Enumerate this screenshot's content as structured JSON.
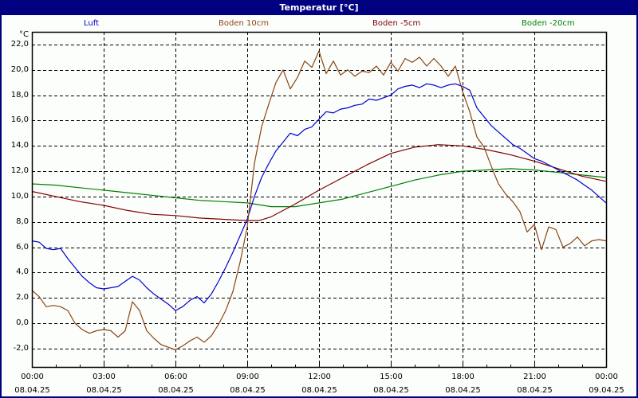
{
  "window": {
    "title": "Temperatur [°C]"
  },
  "colors": {
    "title_bg": "#000080",
    "plot_bg": "#fcfefc",
    "grid": "#000000"
  },
  "chart_data": {
    "type": "line",
    "title": "Temperatur [°C]",
    "ylabel": "°C",
    "xlabel": "",
    "ylim": [
      -3.4,
      23.0
    ],
    "yticks": [
      22,
      20,
      18,
      16,
      14,
      12,
      10,
      8,
      6,
      4,
      2,
      0,
      -2
    ],
    "ytick_labels": [
      "22,0",
      "20,0",
      "18,0",
      "16,0",
      "14,0",
      "12,0",
      "10,0",
      "8,0",
      "6,0",
      "4,0",
      "2,0",
      "0,0",
      "-2,0"
    ],
    "xlim_hours": [
      0,
      24
    ],
    "xticks_hours": [
      0,
      3,
      6,
      9,
      12,
      15,
      18,
      21,
      24
    ],
    "xtick_labels": [
      {
        "time": "00:00",
        "date": "08.04.25"
      },
      {
        "time": "03:00",
        "date": "08.04.25"
      },
      {
        "time": "06:00",
        "date": "08.04.25"
      },
      {
        "time": "09:00",
        "date": "08.04.25"
      },
      {
        "time": "12:00",
        "date": "08.04.25"
      },
      {
        "time": "15:00",
        "date": "08.04.25"
      },
      {
        "time": "18:00",
        "date": "08.04.25"
      },
      {
        "time": "21:00",
        "date": "08.04.25"
      },
      {
        "time": "00:00",
        "date": "09.04.25"
      }
    ],
    "grid": true,
    "legend_position": "top",
    "series": [
      {
        "name": "Luft",
        "color": "#0000cc",
        "x": [
          0,
          0.3,
          0.6,
          0.9,
          1.2,
          1.5,
          1.8,
          2.1,
          2.4,
          2.7,
          3.0,
          3.3,
          3.6,
          3.9,
          4.2,
          4.5,
          4.8,
          5.1,
          5.4,
          5.7,
          6.0,
          6.3,
          6.6,
          6.9,
          7.2,
          7.5,
          7.8,
          8.1,
          8.4,
          8.7,
          9.0,
          9.3,
          9.6,
          9.9,
          10.2,
          10.5,
          10.8,
          11.1,
          11.4,
          11.7,
          12.0,
          12.3,
          12.6,
          12.9,
          13.2,
          13.5,
          13.8,
          14.1,
          14.4,
          14.7,
          15.0,
          15.3,
          15.6,
          15.9,
          16.2,
          16.5,
          16.8,
          17.1,
          17.4,
          17.7,
          18.0,
          18.3,
          18.6,
          18.9,
          19.2,
          19.5,
          19.8,
          20.1,
          20.4,
          20.7,
          21.0,
          21.3,
          21.6,
          21.9,
          22.2,
          22.5,
          22.8,
          23.1,
          23.4,
          23.7,
          24.0
        ],
        "values": [
          6.5,
          6.4,
          5.9,
          5.8,
          5.9,
          5.1,
          4.4,
          3.7,
          3.2,
          2.8,
          2.7,
          2.8,
          2.9,
          3.3,
          3.7,
          3.4,
          2.8,
          2.3,
          1.9,
          1.5,
          1.0,
          1.3,
          1.8,
          2.1,
          1.6,
          2.3,
          3.3,
          4.4,
          5.6,
          6.9,
          8.2,
          10.0,
          11.5,
          12.6,
          13.6,
          14.3,
          15.0,
          14.8,
          15.3,
          15.5,
          16.1,
          16.7,
          16.6,
          16.9,
          17.0,
          17.2,
          17.3,
          17.7,
          17.6,
          17.8,
          18.0,
          18.5,
          18.7,
          18.8,
          18.6,
          18.9,
          18.8,
          18.6,
          18.8,
          18.9,
          18.7,
          18.4,
          17.0,
          16.3,
          15.6,
          15.1,
          14.6,
          14.1,
          13.8,
          13.4,
          13.0,
          12.8,
          12.5,
          12.2,
          11.9,
          11.6,
          11.3,
          10.9,
          10.5,
          10.0,
          9.5
        ]
      },
      {
        "name": "Boden 10cm",
        "color": "#8b4513",
        "x": [
          0,
          0.3,
          0.6,
          0.9,
          1.2,
          1.5,
          1.8,
          2.1,
          2.4,
          2.7,
          3.0,
          3.3,
          3.6,
          3.9,
          4.2,
          4.5,
          4.8,
          5.1,
          5.4,
          5.7,
          6.0,
          6.3,
          6.6,
          6.9,
          7.2,
          7.5,
          7.8,
          8.1,
          8.4,
          8.7,
          9.0,
          9.3,
          9.6,
          9.9,
          10.2,
          10.5,
          10.8,
          11.1,
          11.4,
          11.7,
          12.0,
          12.3,
          12.6,
          12.9,
          13.2,
          13.5,
          13.8,
          14.1,
          14.4,
          14.7,
          15.0,
          15.3,
          15.6,
          15.9,
          16.2,
          16.5,
          16.8,
          17.1,
          17.4,
          17.7,
          18.0,
          18.3,
          18.6,
          18.9,
          19.2,
          19.5,
          19.8,
          20.1,
          20.4,
          20.7,
          21.0,
          21.3,
          21.6,
          21.9,
          22.2,
          22.5,
          22.8,
          23.1,
          23.4,
          23.7,
          24.0
        ],
        "values": [
          2.6,
          2.1,
          1.3,
          1.4,
          1.3,
          1.0,
          0.0,
          -0.5,
          -0.8,
          -0.6,
          -0.5,
          -0.6,
          -1.1,
          -0.6,
          1.7,
          1.0,
          -0.6,
          -1.2,
          -1.7,
          -1.9,
          -2.1,
          -1.8,
          -1.4,
          -1.1,
          -1.5,
          -1.0,
          -0.1,
          1.0,
          2.5,
          4.8,
          7.6,
          12.6,
          15.5,
          17.3,
          19.0,
          20.0,
          18.5,
          19.4,
          20.7,
          20.2,
          21.5,
          19.7,
          20.7,
          19.6,
          20.0,
          19.5,
          19.9,
          19.8,
          20.3,
          19.6,
          20.6,
          19.9,
          20.9,
          20.6,
          21.0,
          20.3,
          20.9,
          20.3,
          19.5,
          20.3,
          18.3,
          16.7,
          14.7,
          13.9,
          12.4,
          11.0,
          10.2,
          9.6,
          8.8,
          7.2,
          7.8,
          5.8,
          7.6,
          7.4,
          6.0,
          6.3,
          6.8,
          6.1,
          6.5,
          6.6,
          6.5
        ]
      },
      {
        "name": "Boden -5cm",
        "color": "#800000",
        "x": [
          0,
          1,
          2,
          3,
          4,
          5,
          6,
          7,
          8,
          9,
          9.5,
          10,
          11,
          12,
          13,
          14,
          15,
          16,
          17,
          18,
          19,
          20,
          21,
          22,
          23,
          24
        ],
        "values": [
          10.4,
          10.0,
          9.6,
          9.3,
          8.9,
          8.6,
          8.5,
          8.3,
          8.2,
          8.1,
          8.1,
          8.4,
          9.4,
          10.5,
          11.5,
          12.5,
          13.4,
          13.9,
          14.1,
          14.0,
          13.7,
          13.3,
          12.8,
          12.2,
          11.6,
          11.2
        ]
      },
      {
        "name": "Boden -20cm",
        "color": "#008000",
        "x": [
          0,
          1,
          2,
          3,
          4,
          5,
          6,
          7,
          8,
          9,
          10,
          11,
          12,
          13,
          14,
          15,
          16,
          17,
          18,
          19,
          20,
          21,
          22,
          23,
          24
        ],
        "values": [
          11.0,
          10.9,
          10.7,
          10.5,
          10.3,
          10.1,
          9.9,
          9.7,
          9.6,
          9.5,
          9.2,
          9.2,
          9.5,
          9.8,
          10.3,
          10.8,
          11.3,
          11.7,
          12.0,
          12.1,
          12.2,
          12.1,
          11.9,
          11.7,
          11.5
        ]
      }
    ]
  }
}
